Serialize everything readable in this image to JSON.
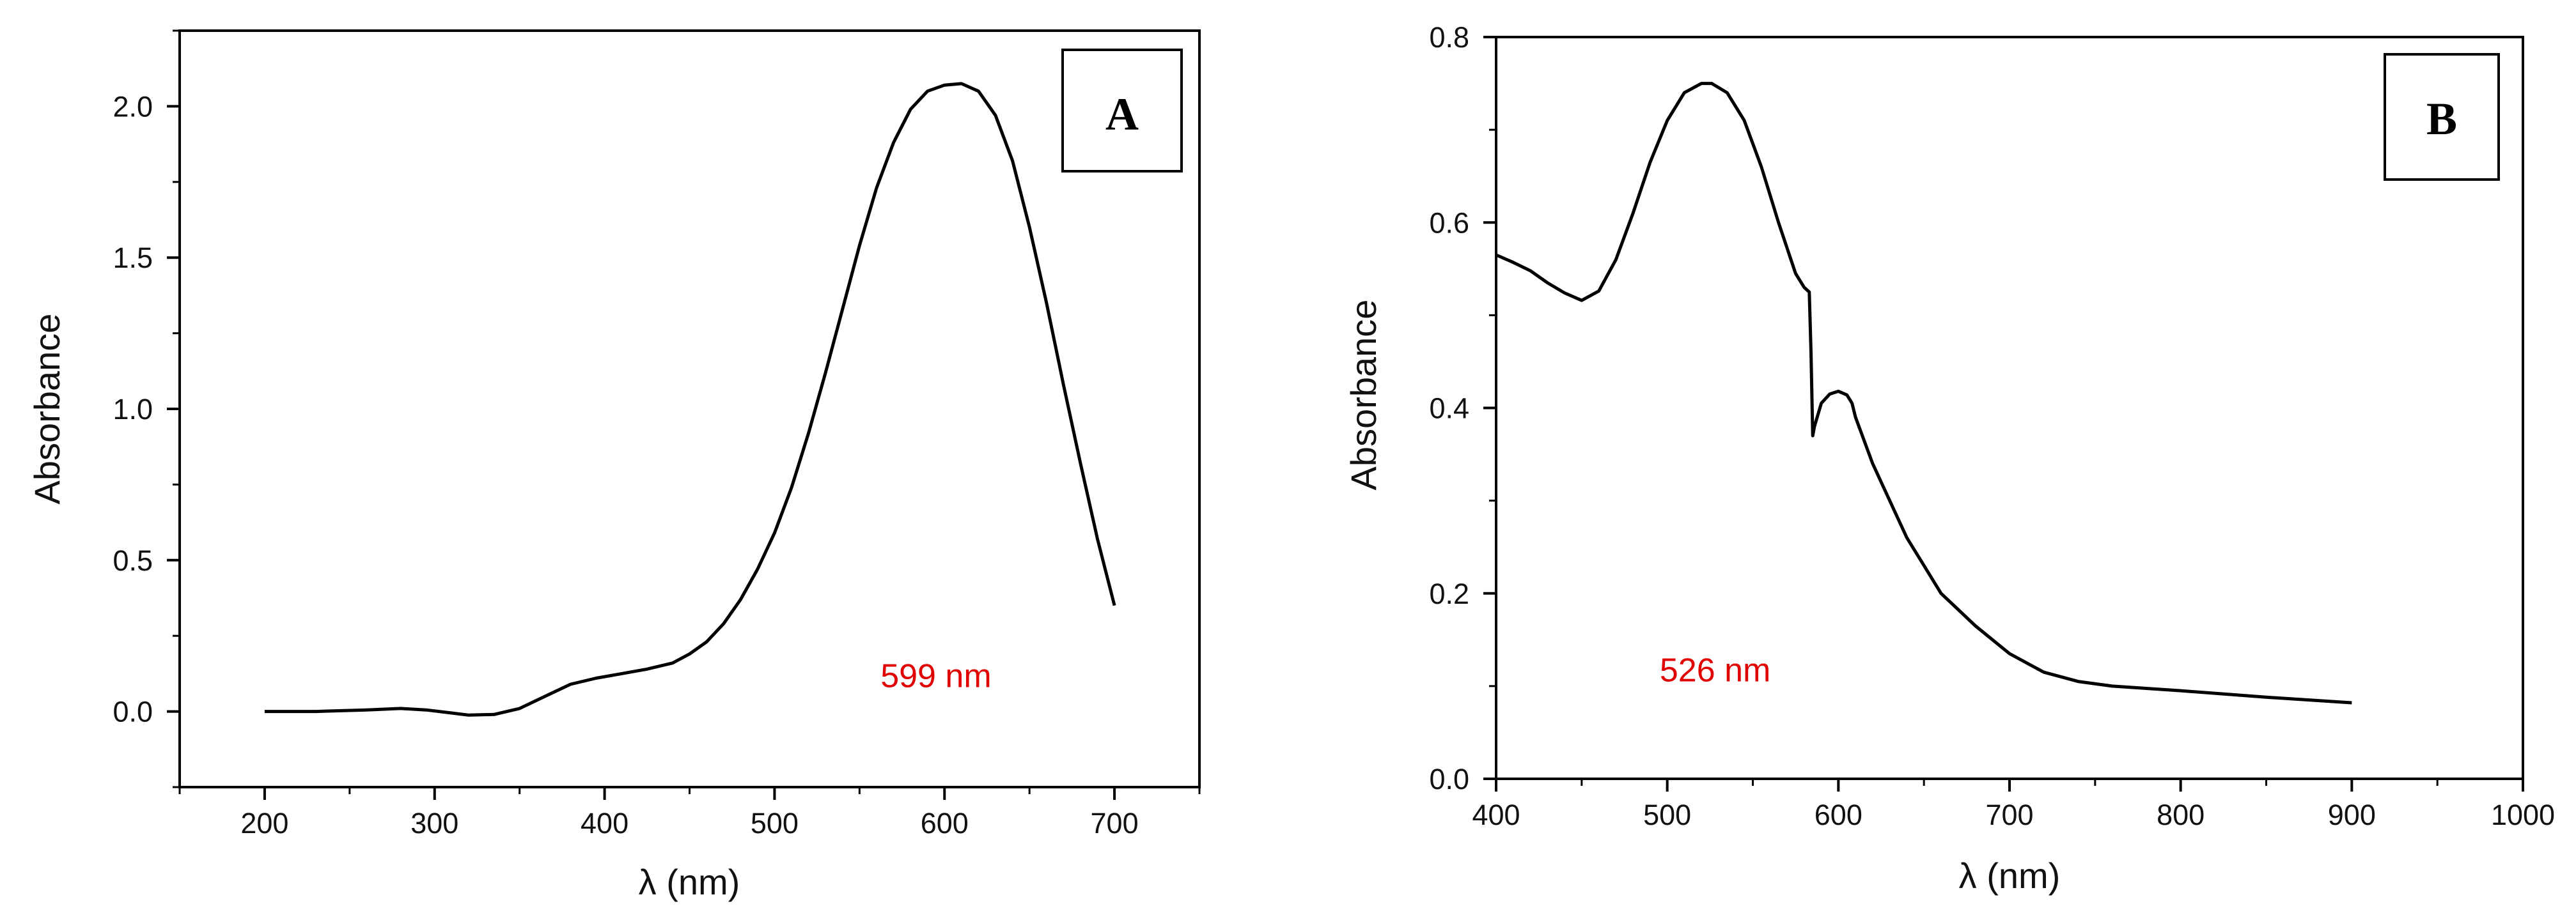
{
  "colors": {
    "axis": "#000000",
    "series": "#000000",
    "annotation": "#e00000"
  },
  "chart_data": [
    {
      "type": "line",
      "panel_label": "A",
      "title": "",
      "xlabel": "λ (nm)",
      "ylabel": "Absorbance",
      "xlim": [
        150,
        750
      ],
      "ylim": [
        -0.25,
        2.25
      ],
      "x_ticks": [
        200,
        300,
        400,
        500,
        600,
        700
      ],
      "x_tick_labels": [
        "200",
        "300",
        "400",
        "500",
        "600",
        "700"
      ],
      "y_ticks": [
        0.0,
        0.5,
        1.0,
        1.5,
        2.0
      ],
      "y_tick_labels": [
        "0.0",
        "0.5",
        "1.0",
        "1.5",
        "2.0"
      ],
      "annotation": {
        "text": "599 nm",
        "x": 595,
        "y": 0.08
      },
      "series": [
        {
          "name": "A",
          "x": [
            200,
            230,
            260,
            280,
            295,
            310,
            320,
            335,
            350,
            365,
            380,
            395,
            410,
            425,
            440,
            450,
            460,
            470,
            480,
            490,
            500,
            510,
            520,
            530,
            540,
            550,
            560,
            570,
            580,
            590,
            600,
            610,
            620,
            630,
            640,
            650,
            660,
            670,
            680,
            690,
            700
          ],
          "y": [
            0.0,
            0.0,
            0.005,
            0.01,
            0.005,
            -0.005,
            -0.012,
            -0.01,
            0.01,
            0.05,
            0.09,
            0.11,
            0.125,
            0.14,
            0.16,
            0.19,
            0.23,
            0.29,
            0.37,
            0.47,
            0.59,
            0.74,
            0.92,
            1.12,
            1.33,
            1.54,
            1.73,
            1.88,
            1.99,
            2.05,
            2.07,
            2.075,
            2.05,
            1.97,
            1.82,
            1.6,
            1.35,
            1.08,
            0.82,
            0.57,
            0.35
          ]
        }
      ]
    },
    {
      "type": "line",
      "panel_label": "B",
      "title": "",
      "xlabel": "λ (nm)",
      "ylabel": "Absorbance",
      "xlim": [
        400,
        1000
      ],
      "ylim": [
        0.0,
        0.8
      ],
      "x_ticks": [
        400,
        500,
        600,
        700,
        800,
        900,
        1000
      ],
      "x_tick_labels": [
        "400",
        "500",
        "600",
        "700",
        "800",
        "900",
        "1000"
      ],
      "y_ticks": [
        0.0,
        0.2,
        0.4,
        0.6,
        0.8
      ],
      "y_tick_labels": [
        "0.0",
        "0.2",
        "0.4",
        "0.6",
        "0.8"
      ],
      "annotation": {
        "text": "526 nm",
        "x": 528,
        "y": 0.105
      },
      "series": [
        {
          "name": "B",
          "x": [
            400,
            410,
            420,
            430,
            440,
            450,
            460,
            470,
            480,
            490,
            500,
            510,
            520,
            526,
            535,
            545,
            555,
            565,
            575,
            580,
            583,
            584,
            585,
            586,
            590,
            595,
            600,
            605,
            608,
            610,
            620,
            630,
            640,
            650,
            660,
            680,
            700,
            720,
            740,
            760,
            800,
            850,
            900
          ],
          "y": [
            0.565,
            0.557,
            0.548,
            0.535,
            0.524,
            0.516,
            0.526,
            0.56,
            0.61,
            0.665,
            0.71,
            0.74,
            0.75,
            0.75,
            0.74,
            0.71,
            0.66,
            0.6,
            0.545,
            0.53,
            0.525,
            0.46,
            0.37,
            0.38,
            0.405,
            0.415,
            0.418,
            0.414,
            0.405,
            0.39,
            0.34,
            0.3,
            0.26,
            0.23,
            0.2,
            0.165,
            0.135,
            0.115,
            0.105,
            0.1,
            0.095,
            0.088,
            0.082
          ]
        }
      ]
    }
  ]
}
